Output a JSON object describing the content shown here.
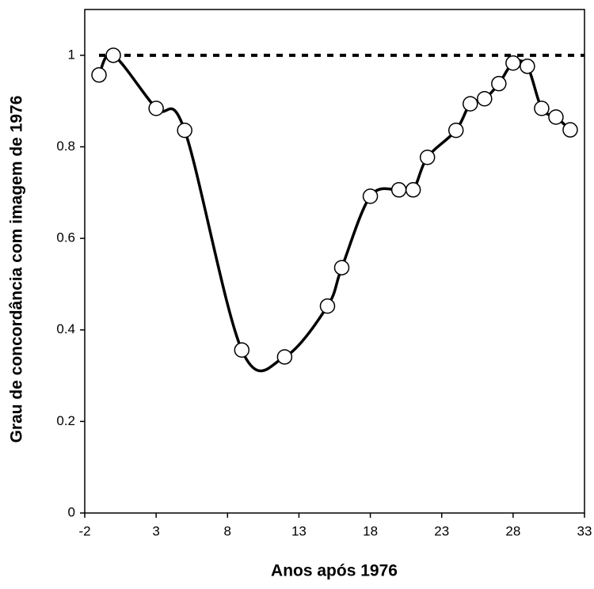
{
  "chart_data": {
    "type": "line",
    "xlabel": "Anos após 1976",
    "ylabel": "Grau de concordância com imagem de 1976",
    "x": [
      -1,
      0,
      3,
      5,
      9,
      12,
      15,
      16,
      18,
      20,
      21,
      22,
      24,
      25,
      26,
      27,
      28,
      29,
      30,
      31,
      32
    ],
    "values": [
      0.957,
      1,
      0.884,
      0.836,
      0.356,
      0.341,
      0.452,
      0.536,
      0.692,
      0.706,
      0.706,
      0.777,
      0.836,
      0.894,
      0.905,
      0.938,
      0.983,
      0.976,
      0.884,
      0.865,
      0.837
    ],
    "color": "#000000",
    "reference_line": 1,
    "xlim": [
      -2,
      33
    ],
    "xticks": [
      -2,
      3,
      8,
      13,
      18,
      23,
      28,
      33
    ],
    "ylim": [
      0,
      1.1
    ],
    "yticks": [
      0,
      0.2,
      0.4,
      0.6,
      0.8,
      1
    ]
  }
}
